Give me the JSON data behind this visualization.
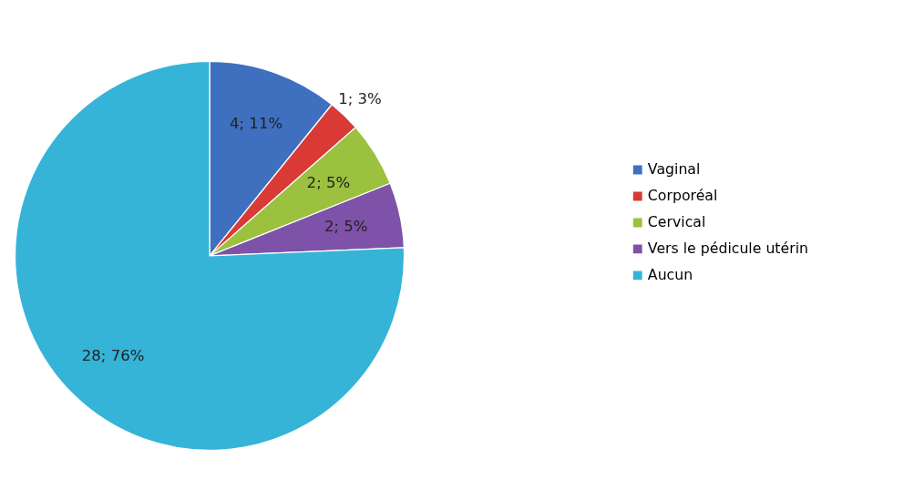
{
  "chart_data": {
    "type": "pie",
    "categories": [
      "Vaginal",
      "Corporéal",
      "Cervical",
      "Vers le pédicule utérin",
      "Aucun"
    ],
    "values": [
      4,
      1,
      2,
      2,
      28
    ],
    "colors": [
      "#3f6fbf",
      "#d93a35",
      "#9bc13f",
      "#7e52a8",
      "#35b4d8"
    ],
    "value_labels": [
      "4; 11%",
      "1; 3%",
      "2; 5%",
      "2; 5%",
      "28; 76%"
    ],
    "legend": "right"
  }
}
